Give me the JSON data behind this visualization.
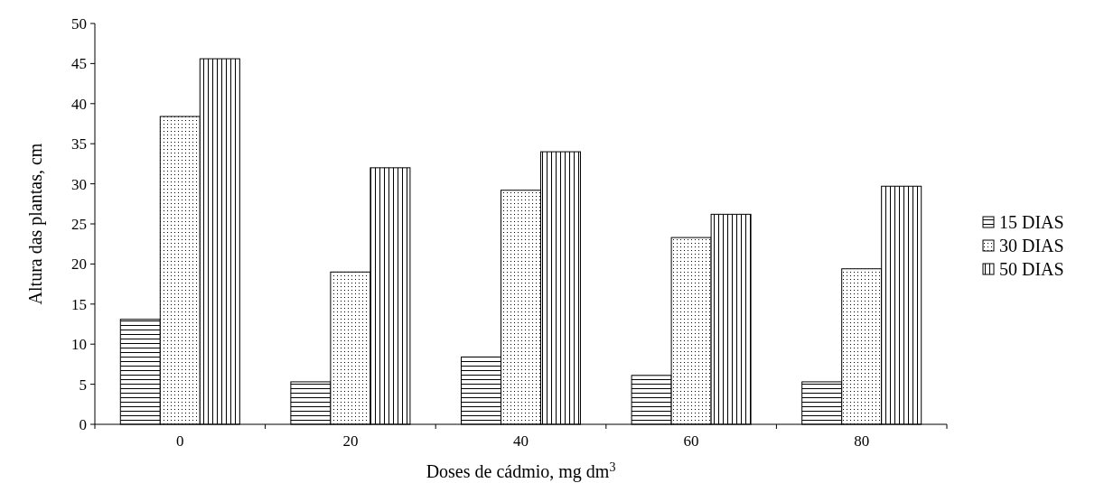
{
  "chart_data": {
    "type": "bar",
    "xlabel": "Doses de cádmio, mg dm$^{3}$",
    "ylabel": "Altura das plantas, cm",
    "categories": [
      "0",
      "20",
      "40",
      "60",
      "80"
    ],
    "series": [
      {
        "name": "15 DIAS",
        "color": "#000000",
        "values": [
          13.1,
          5.3,
          8.4,
          6.1,
          5.3
        ]
      },
      {
        "name": "30 DIAS",
        "color": "#000000",
        "values": [
          38.4,
          19.0,
          29.2,
          23.3,
          19.4
        ]
      },
      {
        "name": "50 DIAS",
        "color": "#000000",
        "values": [
          45.6,
          32.0,
          34.0,
          26.2,
          29.7
        ]
      }
    ],
    "ylim": [
      0,
      50
    ],
    "yticks": [
      0,
      5,
      10,
      15,
      20,
      25,
      30,
      35,
      40,
      45,
      50
    ],
    "legend": "right",
    "grid": false
  }
}
